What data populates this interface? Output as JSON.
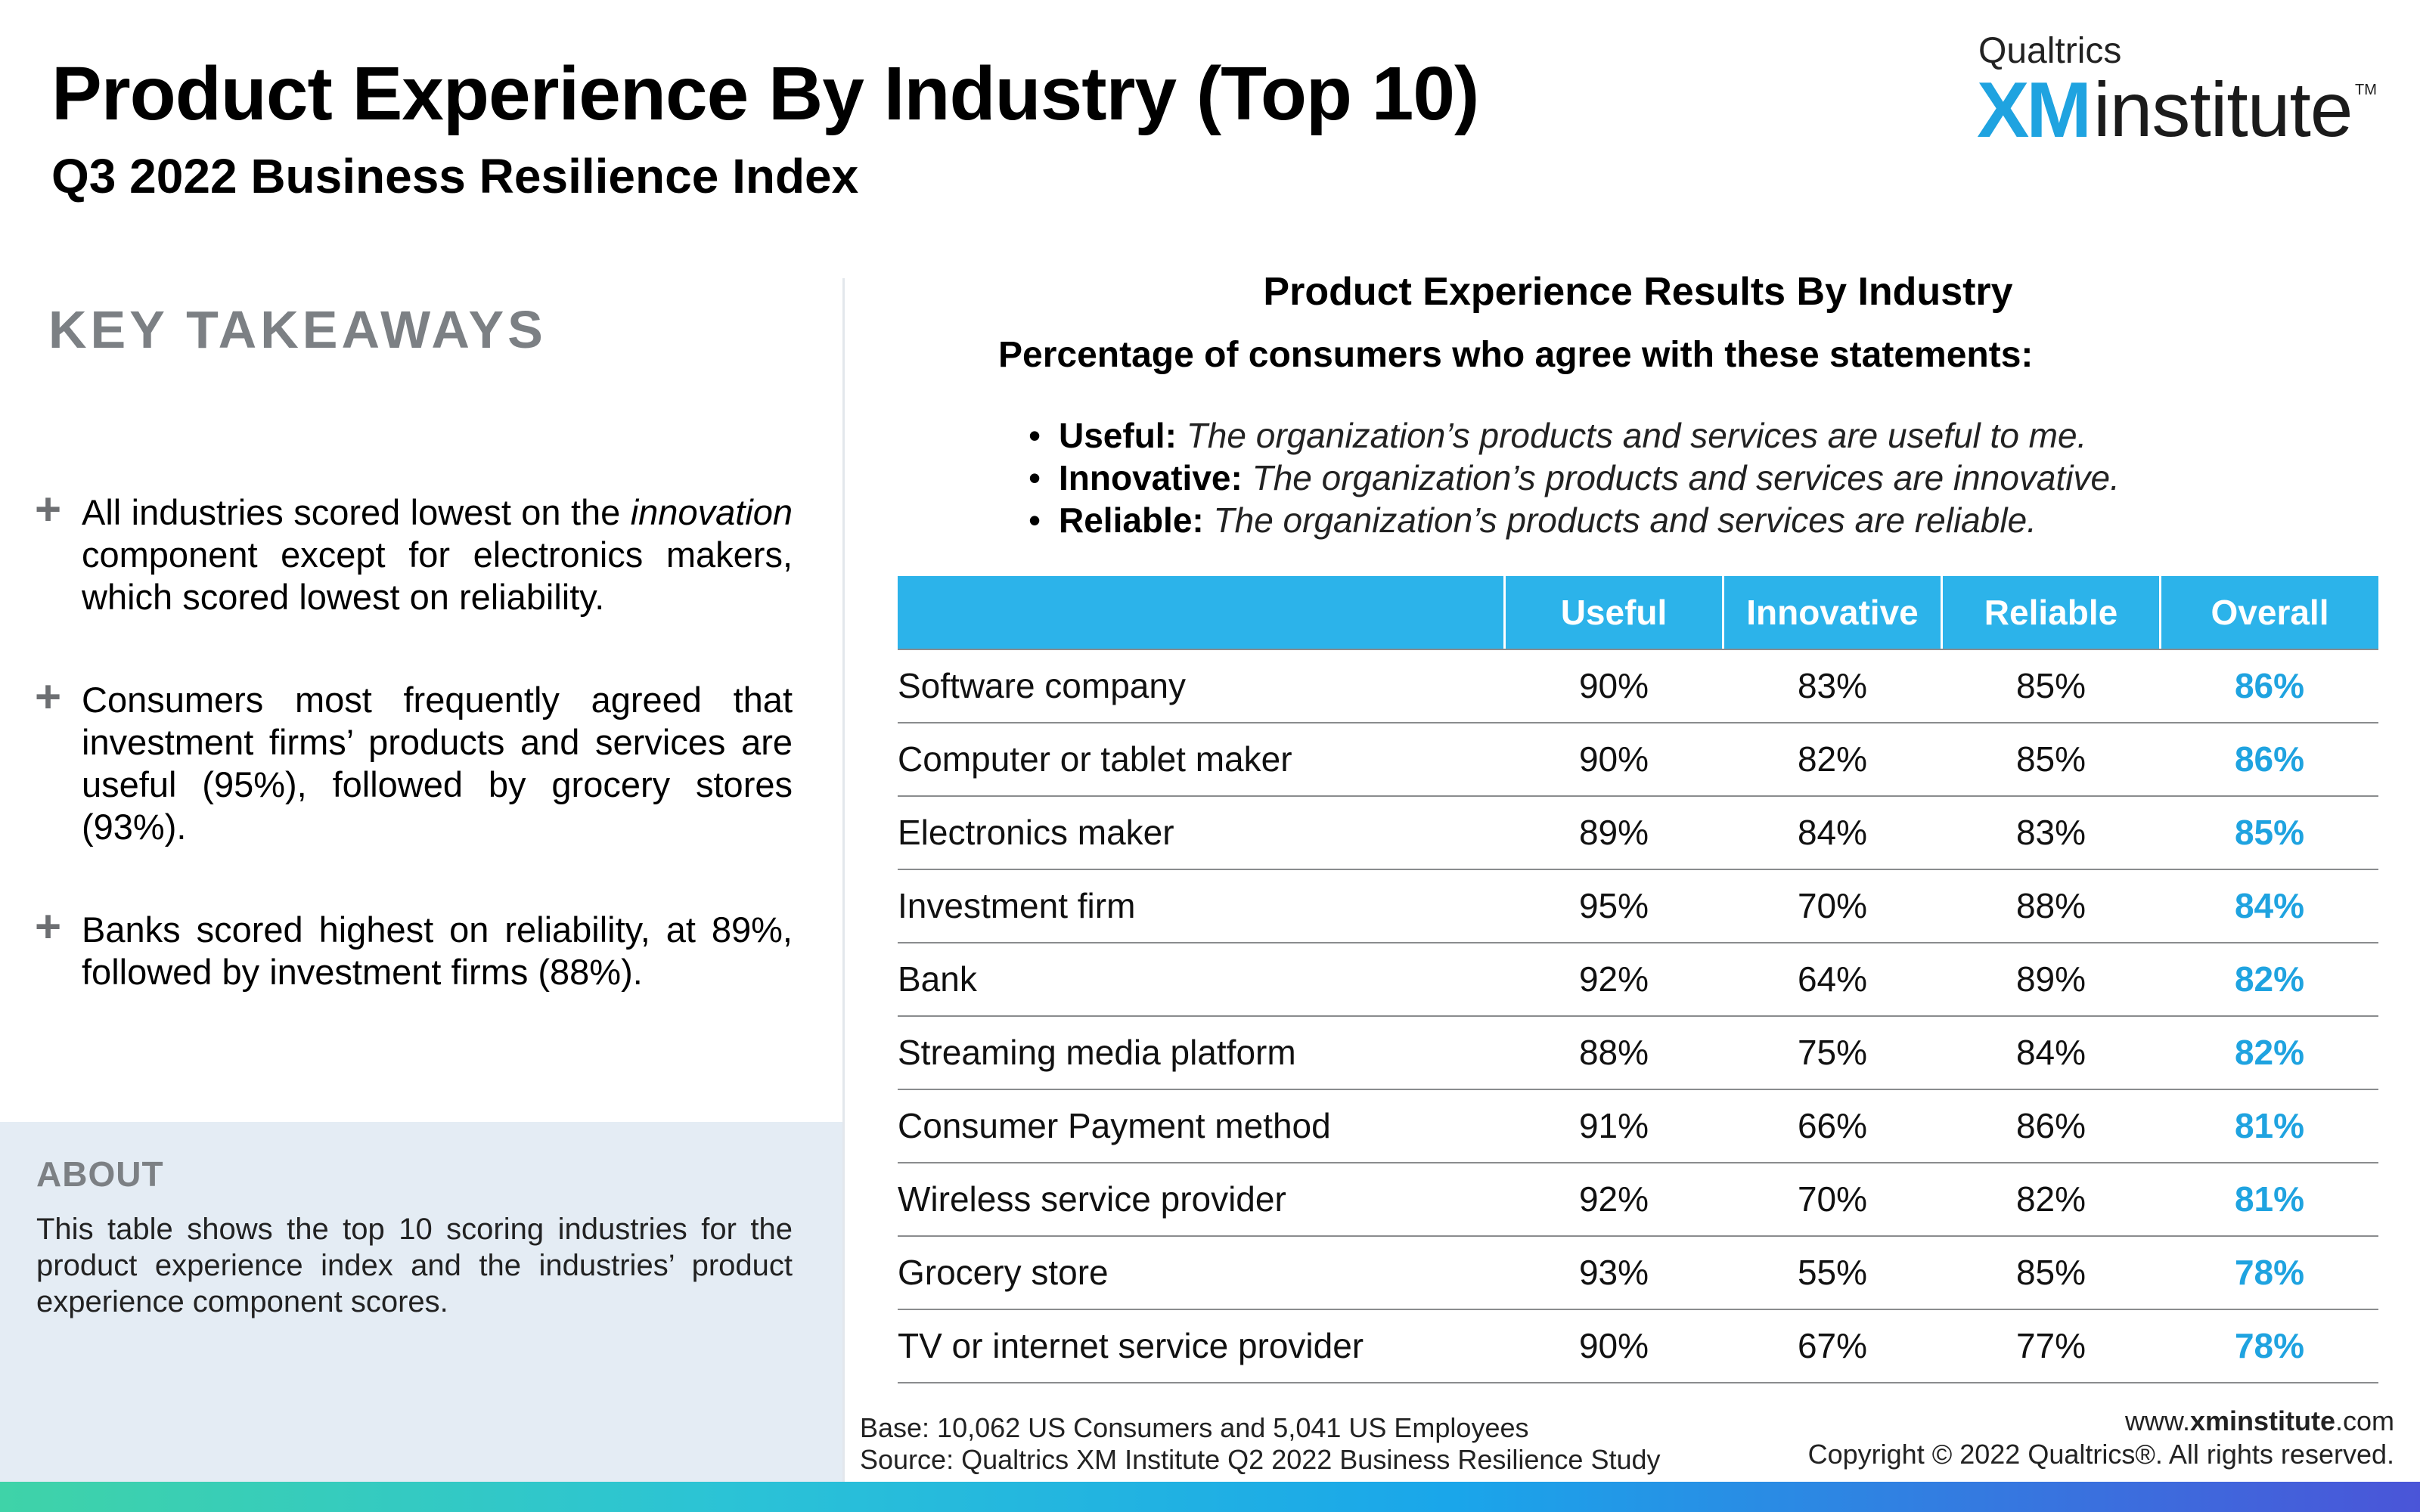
{
  "header": {
    "title": "Product Experience By Industry (Top 10)",
    "subtitle": "Q3 2022 Business Resilience Index"
  },
  "logo": {
    "top": "Qualtrics",
    "xm": "XM",
    "word": "institute",
    "tm": "TM",
    "xm_color": "#1fa3e0"
  },
  "takeaways": {
    "heading": "KEY TAKEAWAYS",
    "items": [
      {
        "pre": "All industries scored lowest on the ",
        "em": "innovation",
        "post": " component except for electronics makers, which scored lowest on reliability."
      },
      {
        "pre": "Consumers most frequently agreed that investment firms’ products and services are useful (95%), followed by grocery stores (93%).",
        "em": "",
        "post": ""
      },
      {
        "pre": "Banks scored highest on reliability, at 89%, followed by investment firms (88%).",
        "em": "",
        "post": ""
      }
    ]
  },
  "about": {
    "heading": "ABOUT",
    "text": "This table shows the top 10 scoring industries for the product experience index and the industries’ product experience component scores."
  },
  "results": {
    "title": "Product Experience Results By Industry",
    "subtitle": "Percentage of consumers who agree with these statements:",
    "definitions": [
      {
        "term": "Useful:",
        "text": "The organization’s products and services are useful to me."
      },
      {
        "term": "Innovative:",
        "text": "The organization’s products and services are innovative."
      },
      {
        "term": "Reliable:",
        "text": "The organization’s products and services are reliable."
      }
    ]
  },
  "table": {
    "header_color": "#2cb3ea",
    "columns": [
      "Useful",
      "Innovative",
      "Reliable",
      "Overall"
    ],
    "rows": [
      {
        "industry": "Software company",
        "useful": "90%",
        "innovative": "83%",
        "reliable": "85%",
        "overall": "86%"
      },
      {
        "industry": "Computer or tablet maker",
        "useful": "90%",
        "innovative": "82%",
        "reliable": "85%",
        "overall": "86%"
      },
      {
        "industry": "Electronics maker",
        "useful": "89%",
        "innovative": "84%",
        "reliable": "83%",
        "overall": "85%"
      },
      {
        "industry": "Investment firm",
        "useful": "95%",
        "innovative": "70%",
        "reliable": "88%",
        "overall": "84%"
      },
      {
        "industry": "Bank",
        "useful": "92%",
        "innovative": "64%",
        "reliable": "89%",
        "overall": "82%"
      },
      {
        "industry": "Streaming media platform",
        "useful": "88%",
        "innovative": "75%",
        "reliable": "84%",
        "overall": "82%"
      },
      {
        "industry": "Consumer Payment method",
        "useful": "91%",
        "innovative": "66%",
        "reliable": "86%",
        "overall": "81%"
      },
      {
        "industry": "Wireless service provider",
        "useful": "92%",
        "innovative": "70%",
        "reliable": "82%",
        "overall": "81%"
      },
      {
        "industry": "Grocery store",
        "useful": "93%",
        "innovative": "55%",
        "reliable": "85%",
        "overall": "78%"
      },
      {
        "industry": "TV or internet service provider",
        "useful": "90%",
        "innovative": "67%",
        "reliable": "77%",
        "overall": "78%"
      }
    ]
  },
  "footer": {
    "base": "Base: 10,062 US Consumers and 5,041 US Employees",
    "source": "Source: Qualtrics XM Institute Q2 2022 Business Resilience Study",
    "url_pre": "www.",
    "url_bold": "xminstitute",
    "url_post": ".com",
    "copyright": "Copyright © 2022 Qualtrics®. All rights reserved."
  }
}
